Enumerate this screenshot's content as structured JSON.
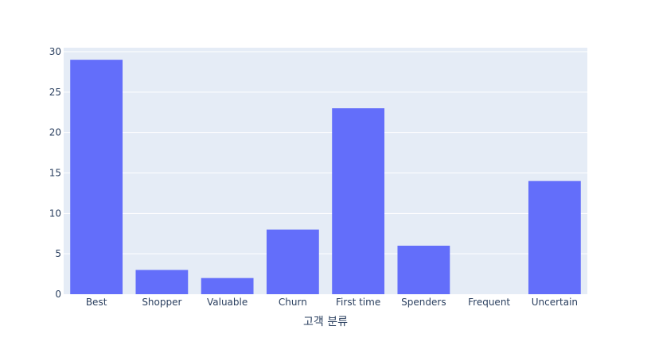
{
  "chart_data": {
    "type": "bar",
    "categories": [
      "Best",
      "Shopper",
      "Valuable",
      "Churn",
      "First time",
      "Spenders",
      "Frequent",
      "Uncertain"
    ],
    "values": [
      29,
      3,
      2,
      8,
      23,
      6,
      0,
      14
    ],
    "xlabel": "고객 분류",
    "ylabel": "",
    "ylim": [
      0,
      30
    ],
    "yticks": [
      0,
      5,
      10,
      15,
      20,
      25,
      30
    ],
    "grid": true,
    "legend": "none"
  },
  "colors": {
    "bar": "#636efa",
    "plot_background": "#e5ecf6",
    "grid": "#ffffff",
    "tick_text": "#2a3f5f"
  }
}
